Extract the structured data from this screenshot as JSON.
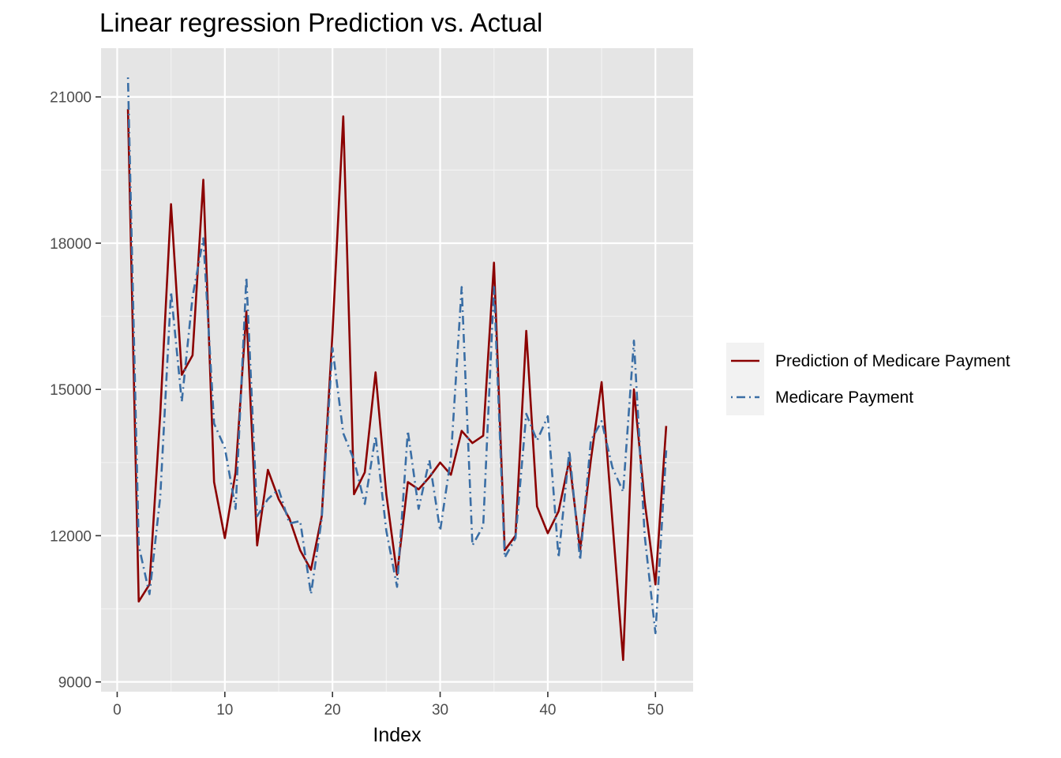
{
  "chart_data": {
    "type": "line",
    "title": "Linear regression Prediction vs. Actual",
    "xlabel": "Index",
    "ylabel": "",
    "xlim": [
      -1.5,
      53.5
    ],
    "ylim": [
      8800,
      22000
    ],
    "x_ticks": [
      0,
      10,
      20,
      30,
      40,
      50
    ],
    "y_ticks": [
      9000,
      12000,
      15000,
      18000,
      21000
    ],
    "grid": true,
    "legend_position": "right",
    "x": [
      1,
      2,
      3,
      4,
      5,
      6,
      7,
      8,
      9,
      10,
      11,
      12,
      13,
      14,
      15,
      16,
      17,
      18,
      19,
      20,
      21,
      22,
      23,
      24,
      25,
      26,
      27,
      28,
      29,
      30,
      31,
      32,
      33,
      34,
      35,
      36,
      37,
      38,
      39,
      40,
      41,
      42,
      43,
      44,
      45,
      46,
      47,
      48,
      49,
      50,
      51
    ],
    "series": [
      {
        "name": "Prediction of Medicare Payment",
        "color": "#8b0000",
        "dash": "solid",
        "values": [
          20750,
          10650,
          11000,
          14500,
          18800,
          15300,
          15700,
          19300,
          13100,
          11950,
          13300,
          16600,
          11800,
          13350,
          12750,
          12350,
          11700,
          11300,
          12400,
          16150,
          20600,
          12850,
          13300,
          15350,
          12850,
          11200,
          13100,
          12950,
          13200,
          13500,
          13250,
          14150,
          13900,
          14050,
          17600,
          11700,
          12000,
          16200,
          12600,
          12050,
          12500,
          13550,
          11700,
          13550,
          15150,
          12300,
          9450,
          15000,
          12700,
          11000,
          14250
        ]
      },
      {
        "name": "Medicare Payment",
        "color": "#3a6ea5",
        "dash": "dotdash",
        "values": [
          21400,
          11800,
          10800,
          12800,
          17000,
          14750,
          16900,
          18100,
          14300,
          13800,
          12550,
          17300,
          12400,
          12750,
          12950,
          12250,
          12300,
          10800,
          12350,
          15850,
          14100,
          13550,
          12650,
          14050,
          12100,
          10950,
          14150,
          12550,
          13550,
          12100,
          13600,
          17100,
          11800,
          12200,
          17100,
          11550,
          11950,
          14500,
          13950,
          14450,
          11550,
          13750,
          11500,
          13950,
          14350,
          13400,
          12900,
          16000,
          12000,
          10000,
          13750
        ]
      }
    ]
  }
}
